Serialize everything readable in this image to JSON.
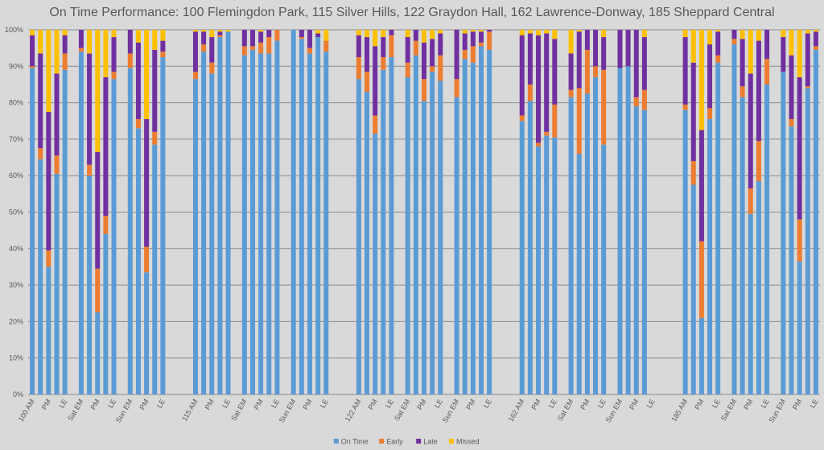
{
  "chart_data": {
    "type": "bar",
    "stacked": true,
    "percent_stacked": true,
    "title": "On Time Performance: 100 Flemingdon Park, 115 Silver Hills, 122 Graydon Hall, 162 Lawrence-Donway, 185 Sheppard Central",
    "xlabel": "",
    "ylabel": "",
    "ylim": [
      0,
      100
    ],
    "yticks": [
      "0%",
      "10%",
      "20%",
      "30%",
      "40%",
      "50%",
      "60%",
      "70%",
      "80%",
      "90%",
      "100%"
    ],
    "grid": true,
    "legend_position": "bottom",
    "series": [
      {
        "name": "On Time",
        "color": "#5b9bd5"
      },
      {
        "name": "Early",
        "color": "#ed7d31"
      },
      {
        "name": "Late",
        "color": "#7030a0"
      },
      {
        "name": "Missed",
        "color": "#ffc000"
      }
    ],
    "routes": [
      {
        "route": "100",
        "groups": [
          {
            "labels": [
              "100 AM",
              "",
              "PM",
              "",
              "LE"
            ],
            "on_time": [
              89.5,
              64.5,
              35,
              60.5,
              89
            ],
            "early": [
              0.5,
              3,
              4.5,
              5,
              4.5
            ],
            "late": [
              8.5,
              26,
              38,
              22.5,
              5
            ],
            "missed": [
              1.5,
              6.5,
              22.5,
              12,
              1.5
            ]
          },
          {
            "labels": [
              "Sat EM",
              "",
              "PM",
              "",
              "LE"
            ],
            "on_time": [
              94,
              60,
              22.5,
              44,
              86.5
            ],
            "early": [
              1,
              3,
              12,
              5,
              2
            ],
            "late": [
              5,
              30.5,
              32,
              38,
              9.5
            ],
            "missed": [
              0,
              6.5,
              33.5,
              13,
              2
            ]
          },
          {
            "labels": [
              "Sun EM",
              "",
              "PM",
              "",
              "LE"
            ],
            "on_time": [
              89.5,
              73,
              33.5,
              68.5,
              92.5
            ],
            "early": [
              4,
              2.5,
              7,
              3.5,
              1.5
            ],
            "late": [
              6.5,
              21,
              35,
              22.5,
              3
            ],
            "missed": [
              0,
              3.5,
              24.5,
              5.5,
              3
            ]
          }
        ]
      },
      {
        "route": "115",
        "groups": [
          {
            "labels": [
              "115 AM",
              "",
              "PM",
              "",
              "LE"
            ],
            "on_time": [
              86.5,
              94,
              88,
              98,
              99.5
            ],
            "early": [
              2,
              2,
              3,
              0.5,
              0
            ],
            "late": [
              11,
              3.5,
              7,
              1,
              0
            ],
            "missed": [
              0.5,
              0.5,
              2,
              0.5,
              0.5
            ]
          },
          {
            "labels": [
              "Sat EM",
              "",
              "PM",
              "",
              "LE"
            ],
            "on_time": [
              93,
              94.5,
              93.5,
              93.5,
              97
            ],
            "early": [
              2.5,
              1,
              3,
              4.5,
              3
            ],
            "late": [
              4.5,
              4.5,
              3,
              2,
              0
            ],
            "missed": [
              0,
              0,
              0.5,
              0,
              0
            ]
          },
          {
            "labels": [
              "Sun EM",
              "",
              "PM",
              "",
              "LE"
            ],
            "on_time": [
              100,
              97.5,
              93.5,
              98,
              94
            ],
            "early": [
              0,
              0.5,
              1.5,
              0,
              3
            ],
            "late": [
              0,
              2,
              5,
              1,
              0
            ],
            "missed": [
              0,
              0,
              0,
              1,
              3
            ]
          }
        ]
      },
      {
        "route": "122",
        "groups": [
          {
            "labels": [
              "122 AM",
              "",
              "PM",
              "",
              "LE"
            ],
            "on_time": [
              86.5,
              83,
              71.5,
              89,
              92.5
            ],
            "early": [
              6,
              5.5,
              5,
              3.5,
              6
            ],
            "late": [
              6,
              9.5,
              19,
              5.5,
              1.5
            ],
            "missed": [
              1.5,
              2,
              4.5,
              2,
              0
            ]
          },
          {
            "labels": [
              "Sat EM",
              "",
              "PM",
              "",
              "LE"
            ],
            "on_time": [
              87,
              93,
              80.5,
              88.5,
              86
            ],
            "early": [
              4,
              4,
              6,
              1.5,
              7
            ],
            "late": [
              7,
              3,
              10,
              7.5,
              6
            ],
            "missed": [
              2,
              0,
              3.5,
              2.5,
              1
            ]
          },
          {
            "labels": [
              "Sun EM",
              "",
              "PM",
              "",
              "LE"
            ],
            "on_time": [
              81.5,
              92,
              91,
              95.5,
              94.5
            ],
            "early": [
              5,
              2.5,
              4.5,
              1,
              5
            ],
            "late": [
              13.5,
              4.5,
              4,
              3,
              0.5
            ],
            "missed": [
              0,
              1,
              0.5,
              0.5,
              0
            ]
          }
        ]
      },
      {
        "route": "162",
        "groups": [
          {
            "labels": [
              "162 AM",
              "",
              "PM",
              "",
              "LE"
            ],
            "on_time": [
              75,
              80.5,
              68,
              71,
              70.5
            ],
            "early": [
              1.5,
              4.5,
              1,
              1,
              9
            ],
            "late": [
              22,
              14,
              29.5,
              27,
              18
            ],
            "missed": [
              1.5,
              1,
              1.5,
              1,
              2.5
            ]
          },
          {
            "labels": [
              "Sat EM",
              "",
              "PM",
              "",
              "LE"
            ],
            "on_time": [
              81.5,
              66,
              82.5,
              87,
              68.5
            ],
            "early": [
              2,
              18,
              12,
              3,
              20.5
            ],
            "late": [
              10,
              15.5,
              5.5,
              10,
              9
            ],
            "missed": [
              6.5,
              0.5,
              0,
              0,
              2
            ]
          },
          {
            "labels": [
              "Sun EM",
              "",
              "PM",
              "",
              "LE"
            ],
            "on_time": [
              89.5,
              90,
              79,
              78,
              null
            ],
            "early": [
              0,
              0,
              2.5,
              5.5,
              null
            ],
            "late": [
              10.5,
              10,
              18.5,
              14.5,
              null
            ],
            "missed": [
              0,
              0,
              0,
              2,
              null
            ]
          }
        ]
      },
      {
        "route": "185",
        "groups": [
          {
            "labels": [
              "185 AM",
              "",
              "PM",
              "",
              "LE"
            ],
            "on_time": [
              78,
              57.5,
              21,
              75.5,
              91
            ],
            "early": [
              1.5,
              6.5,
              21,
              3,
              2
            ],
            "late": [
              18.5,
              27,
              30.5,
              17.5,
              6.5
            ],
            "missed": [
              2,
              9,
              27.5,
              4,
              0.5
            ]
          },
          {
            "labels": [
              "Sat EM",
              "",
              "PM",
              "",
              "LE"
            ],
            "on_time": [
              96,
              81.5,
              49.5,
              58.5,
              85
            ],
            "early": [
              1.5,
              3,
              7,
              11,
              7
            ],
            "late": [
              2.5,
              13,
              31.5,
              27.5,
              8
            ],
            "missed": [
              0,
              2.5,
              12,
              3,
              0
            ]
          },
          {
            "labels": [
              "Sun EM",
              "",
              "PM",
              "",
              "LE"
            ],
            "on_time": [
              88.5,
              73.5,
              36.5,
              84,
              94.5
            ],
            "early": [
              0,
              2,
              11.5,
              0.5,
              1
            ],
            "late": [
              9.5,
              17.5,
              39,
              14.5,
              4
            ],
            "missed": [
              2,
              7,
              13,
              1,
              0.5
            ]
          }
        ]
      }
    ]
  }
}
